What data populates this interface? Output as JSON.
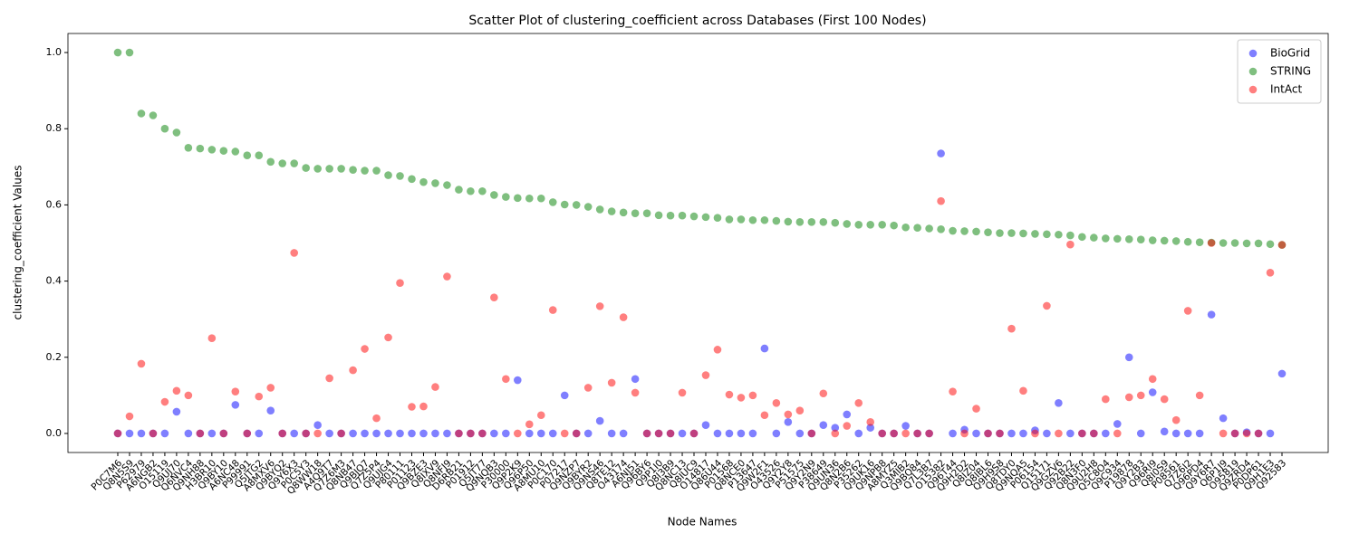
{
  "chart_data": {
    "type": "scatter",
    "title": "Scatter Plot of clustering_coefficient across Databases (First 100 Nodes)",
    "x_label": "Node Names",
    "y_label": "clustering_coefficient Values",
    "categories": [
      "P0C7M6",
      "Q8N5S9",
      "P62979",
      "A6NGB2",
      "O15119",
      "Q9UJ70",
      "Q6NVC4",
      "Q9NH88",
      "H3BR10",
      "Q9BY10",
      "A6NC48",
      "P99991",
      "Q5JTG2",
      "A8MXV6",
      "Q9BYQ2",
      "Q9Y6X3",
      "P0C5Y3",
      "Q8WW18",
      "A4Q9T7",
      "Q7Z6M3",
      "Q8NB47",
      "Q9BJQ7",
      "Q7Z5P4",
      "Q9UJG4",
      "P80111",
      "P01123",
      "Q9BZE3",
      "Q8IXV9",
      "Q8NFJ9",
      "D6RB21",
      "P01912",
      "Q5JT77",
      "Q9NQB3",
      "P30000",
      "Q9P2K9",
      "Q96P50",
      "A8MU10",
      "P0C170",
      "P07217",
      "Q9NZP7",
      "Q9BYR2",
      "Q9NS46",
      "Q8TE12",
      "O43174",
      "A6NJ51",
      "Q96BY6",
      "Q9P1I0",
      "Q8I3B9",
      "Q8NC13",
      "Q8IUC9",
      "O14817",
      "Q86U44",
      "P01568",
      "Q8NCE0",
      "P13647",
      "Q9W2F1",
      "O43526",
      "Q9Y2Y8",
      "P51575",
      "Q9Y2N9",
      "P38649",
      "Q9UN36",
      "Q8N2B6",
      "P35262",
      "Q9UK16",
      "Q9NPB8",
      "A8MYZ5",
      "Q3MIB2",
      "Q9BQ84",
      "Q7L3B7",
      "O15382",
      "Q96T44",
      "Q9H2D2",
      "Q8IZ04",
      "Q8IBL6",
      "Q9H9S8",
      "Q8TDY0",
      "Q9NQA5",
      "P06154",
      "Q15171",
      "Q9GZV6",
      "Q92B22",
      "Q8N3F0",
      "Q9U2H8",
      "Q5C8O4",
      "Q9C934",
      "P19878",
      "Q9Y2B3",
      "Q96RI9",
      "Q8I0S9",
      "P08561",
      "Q7Z6I2",
      "Q96PD4",
      "Q9Y6R7",
      "Q6P1J9",
      "O95819",
      "Q9ZRD4",
      "P0DP61",
      "Q9H1E3",
      "Q92583"
    ],
    "series": [
      {
        "name": "BioGrid",
        "color": "#0000ff",
        "values": [
          0,
          0,
          0,
          0,
          0,
          0.057,
          0,
          0,
          0,
          0,
          0.075,
          0,
          0,
          0.06,
          0,
          0,
          0,
          0.022,
          0,
          0,
          0,
          0,
          0,
          0,
          0,
          0,
          0,
          0,
          0,
          0,
          0,
          0,
          0,
          0,
          0.14,
          0,
          0,
          0,
          0.1,
          0,
          0,
          0.033,
          0,
          0,
          0.143,
          0,
          0,
          0,
          0,
          0,
          0.022,
          0,
          0,
          0,
          0,
          0.223,
          0,
          0.03,
          0,
          0,
          0.022,
          0.015,
          0.05,
          0,
          0.015,
          0,
          0,
          0.02,
          0,
          0,
          0.735,
          0,
          0.01,
          0,
          0,
          0,
          0,
          0,
          0.008,
          0,
          0.08,
          0,
          0,
          0,
          0,
          0.025,
          0.2,
          0,
          0.108,
          0.005,
          0,
          0,
          0,
          0.312,
          0.04,
          0,
          0.003,
          0,
          0,
          0.157
        ]
      },
      {
        "name": "STRING",
        "color": "#008000",
        "values": [
          1.0,
          1.0,
          0.84,
          0.835,
          0.8,
          0.79,
          0.75,
          0.748,
          0.745,
          0.742,
          0.74,
          0.73,
          0.73,
          0.713,
          0.709,
          0.709,
          0.697,
          0.695,
          0.695,
          0.695,
          0.692,
          0.69,
          0.69,
          0.678,
          0.676,
          0.668,
          0.66,
          0.657,
          0.652,
          0.64,
          0.636,
          0.636,
          0.626,
          0.621,
          0.618,
          0.617,
          0.617,
          0.607,
          0.601,
          0.6,
          0.595,
          0.588,
          0.583,
          0.58,
          0.578,
          0.578,
          0.573,
          0.572,
          0.572,
          0.57,
          0.568,
          0.566,
          0.562,
          0.562,
          0.56,
          0.56,
          0.558,
          0.556,
          0.555,
          0.555,
          0.555,
          0.553,
          0.55,
          0.548,
          0.548,
          0.548,
          0.546,
          0.541,
          0.54,
          0.538,
          0.536,
          0.532,
          0.531,
          0.53,
          0.528,
          0.526,
          0.526,
          0.525,
          0.524,
          0.523,
          0.522,
          0.52,
          0.516,
          0.514,
          0.512,
          0.511,
          0.51,
          0.509,
          0.507,
          0.506,
          0.505,
          0.503,
          0.502,
          0.501,
          0.5,
          0.5,
          0.499,
          0.499,
          0.497,
          0.495
        ]
      },
      {
        "name": "IntAct",
        "color": "#ff0000",
        "values": [
          0,
          0.045,
          0.183,
          0,
          0.083,
          0.112,
          0.1,
          0,
          0.25,
          0,
          0.11,
          0,
          0.097,
          0.12,
          0,
          0.474,
          0,
          0,
          0.145,
          0,
          0.166,
          0.222,
          0.04,
          0.252,
          0.395,
          0.07,
          0.071,
          0.122,
          0.412,
          0,
          0,
          0,
          0.357,
          0.143,
          0,
          0.024,
          0.048,
          0.324,
          0,
          0,
          0.12,
          0.334,
          0.133,
          0.305,
          0.107,
          0,
          0,
          0,
          0.107,
          0,
          0.153,
          0.22,
          0.102,
          0.094,
          0.1,
          0.048,
          0.08,
          0.05,
          0.06,
          0,
          0.105,
          0,
          0.02,
          0.08,
          0.03,
          0,
          0,
          0,
          0,
          0,
          0.61,
          0.11,
          0,
          0.065,
          0,
          0,
          0.275,
          0.112,
          0,
          0.335,
          0,
          0.496,
          0,
          0,
          0.09,
          0,
          0.095,
          0.1,
          0.143,
          0.09,
          0.035,
          0.322,
          0.1,
          0.5,
          0,
          0,
          0,
          0,
          0.422,
          0.495
        ]
      }
    ],
    "ylim": [
      -0.05,
      1.05
    ],
    "yticks": [
      {
        "value": 0,
        "label": "0.0"
      },
      {
        "value": 0.2,
        "label": "0.2"
      },
      {
        "value": 0.4,
        "label": "0.4"
      },
      {
        "value": 0.6,
        "label": "0.6"
      },
      {
        "value": 0.8,
        "label": "0.8"
      },
      {
        "value": 1,
        "label": "1.0"
      }
    ],
    "legend": "upper right",
    "opacity": 0.5
  }
}
